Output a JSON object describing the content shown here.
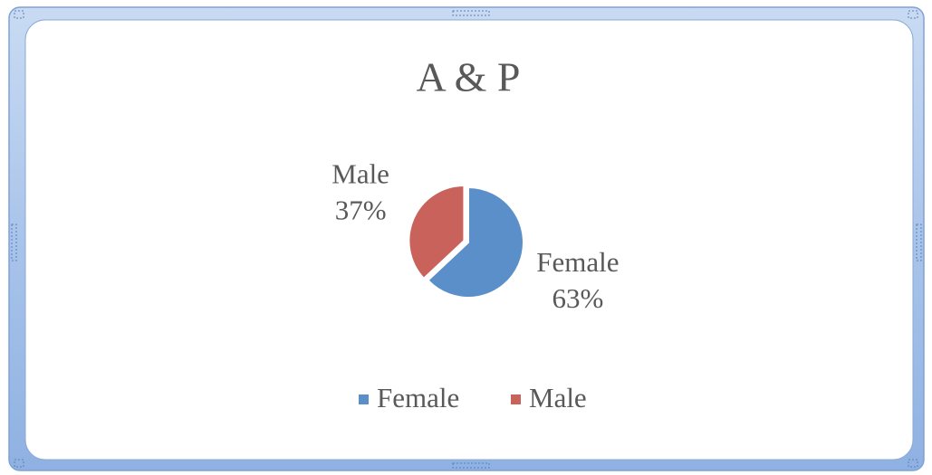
{
  "chart_data": {
    "type": "pie",
    "title": "A & P",
    "categories": [
      "Female",
      "Male"
    ],
    "values": [
      63,
      37
    ],
    "value_labels": [
      "63%",
      "37%"
    ],
    "colors": [
      "#5b8fca",
      "#c8625b"
    ],
    "legend": "bottom"
  }
}
